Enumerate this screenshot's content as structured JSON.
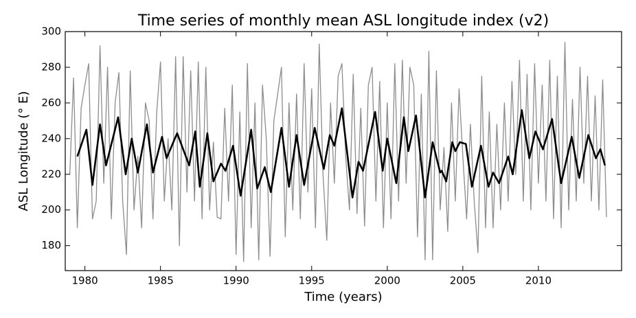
{
  "chart_data": {
    "type": "line",
    "title": "Time series of monthly mean ASL longitude index (v2)",
    "xlabel": "Time (years)",
    "ylabel": "ASL Longitude (° E)",
    "xlim": [
      1978.7,
      2015.5
    ],
    "ylim": [
      166,
      300
    ],
    "xticks": [
      1980,
      1985,
      1990,
      1995,
      2000,
      2005,
      2010
    ],
    "yticks": [
      180,
      200,
      220,
      240,
      260,
      280,
      300
    ],
    "grid": false,
    "series": [
      {
        "color": "#8c8c8c",
        "x": [
          1979,
          1979.25,
          1979.5,
          1979.75,
          1980,
          1980.25,
          1980.5,
          1980.75,
          1981,
          1981.25,
          1981.5,
          1981.75,
          1982,
          1982.25,
          1982.5,
          1982.75,
          1983,
          1983.25,
          1983.5,
          1983.75,
          1984,
          1984.25,
          1984.5,
          1984.75,
          1985,
          1985.25,
          1985.5,
          1985.75,
          1986,
          1986.25,
          1986.5,
          1986.75,
          1987,
          1987.25,
          1987.5,
          1987.75,
          1988,
          1988.25,
          1988.5,
          1988.75,
          1989,
          1989.25,
          1989.5,
          1989.75,
          1990,
          1990.25,
          1990.5,
          1990.75,
          1991,
          1991.25,
          1991.5,
          1991.75,
          1992,
          1992.25,
          1992.5,
          1992.75,
          1993,
          1993.25,
          1993.5,
          1993.75,
          1994,
          1994.25,
          1994.5,
          1994.75,
          1995,
          1995.25,
          1995.5,
          1995.75,
          1996,
          1996.25,
          1996.5,
          1996.75,
          1997,
          1997.25,
          1997.5,
          1997.75,
          1998,
          1998.25,
          1998.5,
          1998.75,
          1999,
          1999.25,
          1999.5,
          1999.75,
          2000,
          2000.25,
          2000.5,
          2000.75,
          2001,
          2001.25,
          2001.5,
          2001.75,
          2002,
          2002.25,
          2002.5,
          2002.75,
          2003,
          2003.25,
          2003.5,
          2003.75,
          2004,
          2004.25,
          2004.5,
          2004.75,
          2005,
          2005.25,
          2005.5,
          2005.75,
          2006,
          2006.25,
          2006.5,
          2006.75,
          2007,
          2007.25,
          2007.5,
          2007.75,
          2008,
          2008.25,
          2008.5,
          2008.75,
          2009,
          2009.25,
          2009.5,
          2009.75,
          2010,
          2010.25,
          2010.5,
          2010.75,
          2011,
          2011.25,
          2011.5,
          2011.75,
          2012,
          2012.25,
          2012.5,
          2012.75,
          2013,
          2013.25,
          2013.5,
          2013.75,
          2014,
          2014.25,
          2014.5
        ],
        "values": [
          220,
          274,
          190,
          257,
          270,
          282,
          195,
          205,
          292,
          215,
          280,
          195,
          260,
          277,
          205,
          175,
          278,
          200,
          230,
          190,
          260,
          250,
          195,
          255,
          283,
          205,
          240,
          200,
          286,
          180,
          286,
          210,
          278,
          205,
          283,
          195,
          280,
          200,
          238,
          196,
          195,
          257,
          205,
          270,
          175,
          255,
          171,
          282,
          190,
          260,
          172,
          270,
          240,
          174,
          250,
          265,
          280,
          185,
          260,
          200,
          265,
          195,
          282,
          210,
          268,
          190,
          293,
          220,
          183,
          260,
          215,
          275,
          282,
          230,
          200,
          276,
          198,
          257,
          191,
          270,
          280,
          205,
          272,
          190,
          260,
          195,
          282,
          205,
          284,
          215,
          280,
          270,
          185,
          265,
          172,
          289,
          172,
          278,
          200,
          235,
          188,
          260,
          205,
          268,
          230,
          195,
          248,
          205,
          176,
          275,
          190,
          255,
          190,
          248,
          200,
          260,
          205,
          272,
          220,
          284,
          205,
          276,
          200,
          282,
          215,
          270,
          205,
          284,
          195,
          275,
          190,
          294,
          200,
          262,
          205,
          280,
          215,
          275,
          205,
          264,
          200,
          273,
          196
        ]
      },
      {
        "color": "#000000",
        "x": [
          1979.5,
          1980.1,
          1980.5,
          1981.0,
          1981.4,
          1982.2,
          1982.7,
          1983.1,
          1983.5,
          1984.1,
          1984.5,
          1985.1,
          1985.4,
          1986.1,
          1986.9,
          1987.3,
          1987.6,
          1988.1,
          1988.5,
          1989.0,
          1989.3,
          1989.8,
          1990.3,
          1991.0,
          1991.4,
          1991.9,
          1992.3,
          1993.0,
          1993.5,
          1994.0,
          1994.5,
          1995.2,
          1995.8,
          1996.2,
          1996.5,
          1997.0,
          1997.7,
          1998.1,
          1998.4,
          1999.2,
          1999.7,
          2000.0,
          2000.6,
          2001.1,
          2001.4,
          2001.9,
          2002.5,
          2003.0,
          2003.5,
          2003.6,
          2003.9,
          2004.3,
          2004.5,
          2004.8,
          2005.2,
          2005.6,
          2006.2,
          2006.7,
          2007.0,
          2007.4,
          2008.0,
          2008.3,
          2008.9,
          2009.4,
          2009.8,
          2010.3,
          2010.9,
          2011.5,
          2012.2,
          2012.7,
          2013.3,
          2013.8,
          2014.1,
          2014.4
        ],
        "values": [
          230,
          245,
          214,
          248,
          225,
          252,
          220,
          240,
          221,
          248,
          221,
          241,
          229,
          243,
          225,
          244,
          213,
          243,
          216,
          226,
          222,
          236,
          208,
          245,
          212,
          224,
          210,
          246,
          213,
          242,
          214,
          246,
          223,
          242,
          236,
          257,
          207,
          227,
          222,
          255,
          222,
          240,
          215,
          252,
          233,
          253,
          207,
          238,
          221,
          222,
          216,
          238,
          233,
          238,
          237,
          213,
          236,
          213,
          221,
          215,
          230,
          220,
          256,
          229,
          244,
          234,
          251,
          215,
          241,
          218,
          242,
          229,
          234,
          225
        ]
      }
    ]
  }
}
